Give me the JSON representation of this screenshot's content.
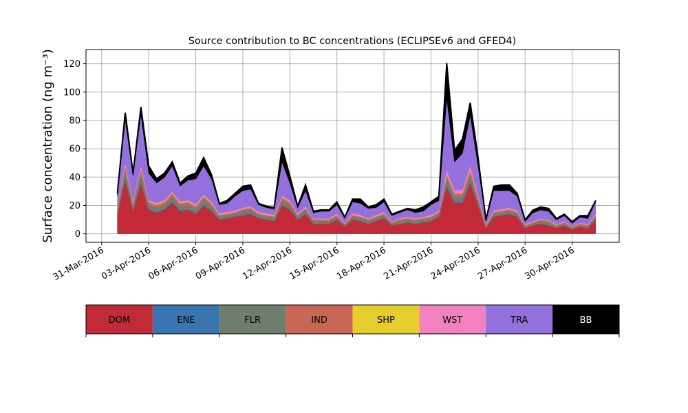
{
  "chart_data": {
    "type": "area",
    "stacked": true,
    "title": "Source contribution to BC concentrations (ECLIPSEv6 and GFED4)",
    "ylabel": "Surface concentration (ng m⁻³)",
    "xlabel": "",
    "xlim": [
      "2016-03-30",
      "2016-05-03"
    ],
    "ylim": [
      -6,
      130
    ],
    "yticks": [
      0,
      20,
      40,
      60,
      80,
      100,
      120
    ],
    "xticks": [
      "2016-03-31",
      "2016-04-03",
      "2016-04-06",
      "2016-04-09",
      "2016-04-12",
      "2016-04-15",
      "2016-04-18",
      "2016-04-21",
      "2016-04-24",
      "2016-04-27",
      "2016-04-30"
    ],
    "xtick_labels": [
      "31-Mar-2016",
      "03-Apr-2016",
      "06-Apr-2016",
      "09-Apr-2016",
      "12-Apr-2016",
      "15-Apr-2016",
      "18-Apr-2016",
      "21-Apr-2016",
      "24-Apr-2016",
      "27-Apr-2016",
      "30-Apr-2016"
    ],
    "grid": true,
    "legend": "colorbar-below",
    "x": [
      "2016-04-01",
      "2016-04-01 12:00",
      "2016-04-02",
      "2016-04-02 12:00",
      "2016-04-03",
      "2016-04-03 12:00",
      "2016-04-04",
      "2016-04-04 12:00",
      "2016-04-05",
      "2016-04-05 12:00",
      "2016-04-06",
      "2016-04-06 12:00",
      "2016-04-07",
      "2016-04-07 12:00",
      "2016-04-08",
      "2016-04-08 12:00",
      "2016-04-09",
      "2016-04-09 12:00",
      "2016-04-10",
      "2016-04-10 12:00",
      "2016-04-11",
      "2016-04-11 12:00",
      "2016-04-12",
      "2016-04-12 12:00",
      "2016-04-13",
      "2016-04-13 12:00",
      "2016-04-14",
      "2016-04-14 12:00",
      "2016-04-15",
      "2016-04-15 12:00",
      "2016-04-16",
      "2016-04-16 12:00",
      "2016-04-17",
      "2016-04-17 12:00",
      "2016-04-18",
      "2016-04-18 12:00",
      "2016-04-19",
      "2016-04-19 12:00",
      "2016-04-20",
      "2016-04-20 12:00",
      "2016-04-21",
      "2016-04-21 12:00",
      "2016-04-22",
      "2016-04-22 12:00",
      "2016-04-23",
      "2016-04-23 12:00",
      "2016-04-24",
      "2016-04-24 12:00",
      "2016-04-25",
      "2016-04-25 12:00",
      "2016-04-26",
      "2016-04-26 12:00",
      "2016-04-27",
      "2016-04-27 12:00",
      "2016-04-28",
      "2016-04-28 12:00",
      "2016-04-29",
      "2016-04-29 12:00",
      "2016-04-30",
      "2016-04-30 12:00",
      "2016-05-01",
      "2016-05-01 12:00"
    ],
    "series": [
      {
        "name": "DOM",
        "color": "#c22a38",
        "values": [
          14,
          38,
          16,
          36,
          17,
          15,
          17,
          22,
          16,
          17,
          14,
          20,
          16,
          10,
          11,
          12,
          13,
          14,
          11,
          10,
          9,
          20,
          17,
          10,
          14,
          7,
          7,
          7,
          10,
          5,
          10,
          9,
          7,
          9,
          11,
          6,
          7,
          8,
          7,
          8,
          9,
          12,
          33,
          22,
          22,
          36,
          20,
          4,
          12,
          13,
          14,
          12,
          4,
          6,
          7,
          6,
          4,
          6,
          3,
          5,
          4,
          10
        ]
      },
      {
        "name": "ENE",
        "color": "#3976af",
        "values": [
          0.5,
          1,
          0.5,
          1,
          0.5,
          0.5,
          0.5,
          0.5,
          0.5,
          0.5,
          0.5,
          0.5,
          0.5,
          0.3,
          0.3,
          0.3,
          0.3,
          0.3,
          0.3,
          0.3,
          0.3,
          0.5,
          0.5,
          0.3,
          0.3,
          0.2,
          0.2,
          0.2,
          0.3,
          0.2,
          0.3,
          0.3,
          0.2,
          0.3,
          0.3,
          0.2,
          0.2,
          0.2,
          0.2,
          0.2,
          0.3,
          0.3,
          1,
          0.5,
          0.5,
          1,
          0.5,
          0.2,
          0.3,
          0.3,
          0.3,
          0.3,
          0.2,
          0.2,
          0.2,
          0.2,
          0.2,
          0.2,
          0.1,
          0.2,
          0.2,
          0.3
        ]
      },
      {
        "name": "FLR",
        "color": "#6e7f6f",
        "values": [
          3,
          6,
          3,
          6,
          3,
          3,
          3,
          4,
          3,
          3,
          3,
          4,
          3,
          2,
          2,
          2,
          3,
          3,
          2,
          2,
          2,
          3,
          3,
          2,
          3,
          2,
          2,
          2,
          2,
          1,
          2,
          2,
          2,
          2,
          2,
          1,
          2,
          2,
          2,
          2,
          2,
          2,
          5,
          4,
          4,
          5,
          3,
          1,
          2,
          2,
          2,
          2,
          1,
          1,
          2,
          2,
          1,
          1,
          1,
          1,
          1,
          2
        ]
      },
      {
        "name": "IND",
        "color": "#c96757",
        "values": [
          2,
          3,
          2,
          3,
          2,
          2,
          2,
          2,
          2,
          2,
          2,
          2,
          2,
          1,
          1,
          1,
          1,
          1,
          1,
          1,
          1,
          2,
          2,
          1,
          1,
          1,
          1,
          1,
          1,
          1,
          1,
          1,
          1,
          1,
          1,
          1,
          1,
          1,
          1,
          1,
          1,
          1,
          3,
          2,
          2,
          3,
          2,
          1,
          1,
          1,
          1,
          1,
          1,
          1,
          1,
          1,
          1,
          1,
          1,
          1,
          1,
          1
        ]
      },
      {
        "name": "SHP",
        "color": "#e6cf2d",
        "values": [
          0.3,
          0.5,
          0.3,
          0.5,
          0.3,
          0.3,
          0.3,
          0.3,
          0.3,
          0.3,
          0.3,
          0.3,
          0.3,
          0.2,
          0.2,
          0.2,
          0.2,
          0.2,
          0.2,
          0.2,
          0.2,
          0.3,
          0.3,
          0.2,
          0.2,
          0.2,
          0.2,
          0.2,
          0.2,
          0.1,
          0.2,
          0.2,
          0.2,
          0.2,
          0.2,
          0.1,
          0.2,
          0.2,
          0.2,
          0.2,
          0.2,
          0.2,
          0.5,
          0.3,
          0.3,
          0.5,
          0.3,
          0.1,
          0.2,
          0.2,
          0.2,
          0.2,
          0.1,
          0.1,
          0.2,
          0.2,
          0.1,
          0.1,
          0.1,
          0.1,
          0.1,
          0.2
        ]
      },
      {
        "name": "WST",
        "color": "#f181bf",
        "values": [
          1,
          2,
          1,
          2,
          1,
          1,
          1,
          1,
          1,
          1,
          1,
          1,
          1,
          1,
          1,
          1,
          1,
          1,
          1,
          1,
          1,
          1,
          1,
          1,
          1,
          0.5,
          0.5,
          0.5,
          1,
          0.5,
          1,
          1,
          0.5,
          1,
          1,
          0.5,
          0.5,
          0.5,
          0.5,
          0.5,
          1,
          1,
          3,
          2,
          2,
          3,
          2,
          0.5,
          1,
          1,
          1,
          1,
          0.5,
          0.5,
          0.5,
          0.5,
          0.5,
          0.5,
          0.3,
          0.5,
          0.5,
          1
        ]
      },
      {
        "name": "TRA",
        "color": "#9370db",
        "values": [
          6,
          30,
          18,
          36,
          19,
          14,
          16,
          18,
          11,
          14,
          18,
          20,
          16,
          6,
          6,
          10,
          12,
          12,
          5,
          4,
          4,
          24,
          12,
          4,
          11,
          4,
          5,
          5,
          6,
          3,
          8,
          8,
          7,
          5,
          7,
          4,
          4,
          5,
          4,
          4,
          7,
          7,
          50,
          20,
          26,
          35,
          20,
          2,
          14,
          13,
          12,
          10,
          2,
          6,
          6,
          6,
          3,
          4,
          2,
          4,
          4,
          8
        ]
      },
      {
        "name": "BB",
        "color": "#000000",
        "values": [
          2,
          5,
          2,
          5,
          5,
          3,
          3,
          3,
          2,
          3,
          4,
          6,
          3,
          1,
          2,
          2,
          3,
          3,
          1,
          1,
          1,
          10,
          5,
          1,
          4,
          1,
          1,
          1,
          2,
          1,
          2,
          3,
          1,
          2,
          2,
          1,
          1,
          1,
          2,
          3,
          2,
          3,
          25,
          8,
          10,
          9,
          6,
          1,
          3,
          4,
          4,
          2,
          1,
          2,
          2,
          2,
          1,
          1,
          1,
          1,
          2,
          1
        ]
      }
    ]
  }
}
